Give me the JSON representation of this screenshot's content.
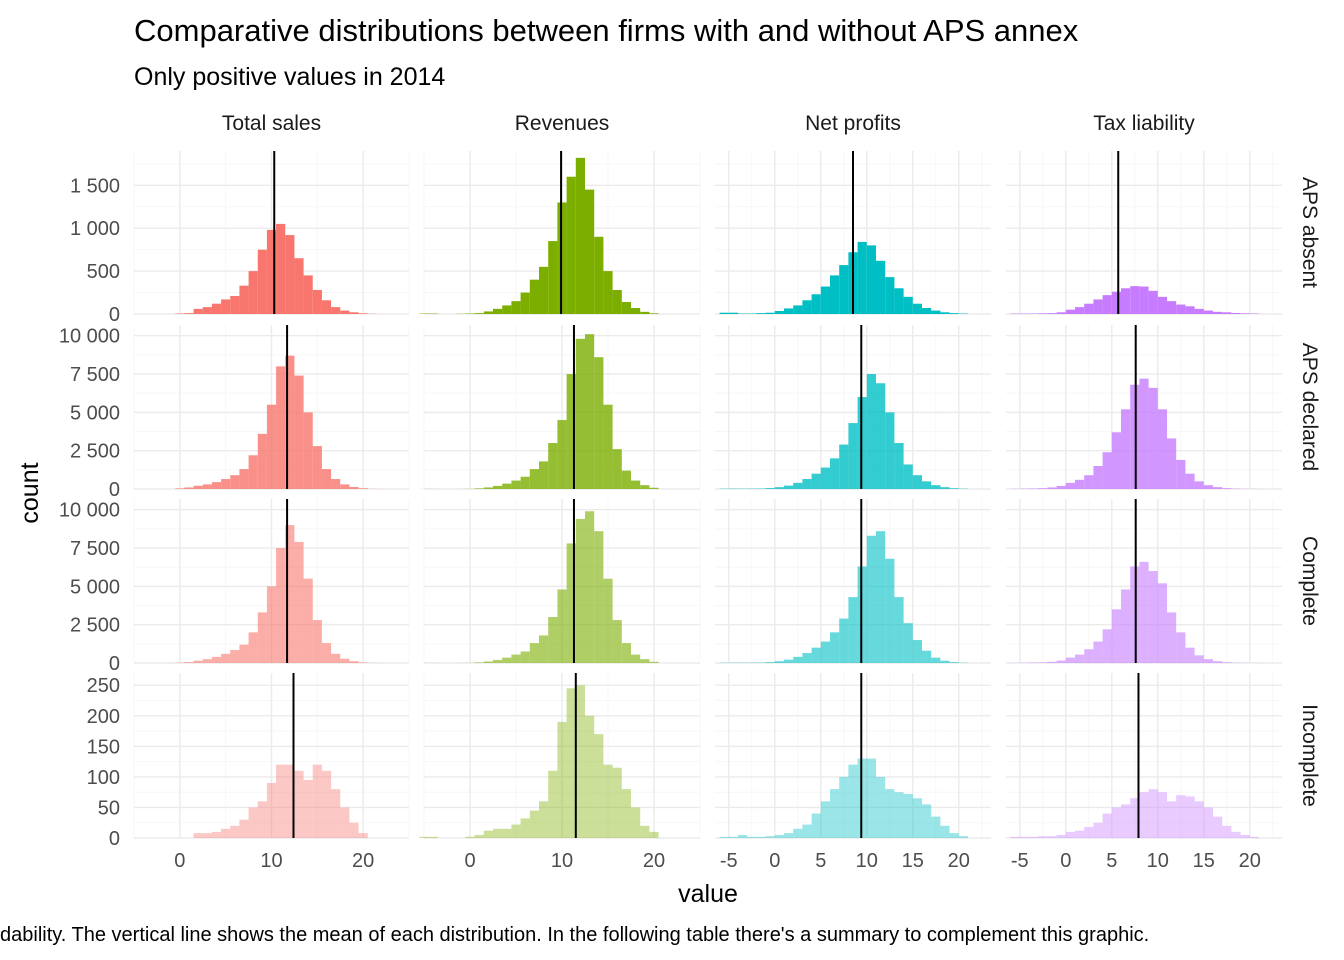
{
  "title": "Comparative distributions between firms with and without APS annex",
  "subtitle": "Only positive values in 2014",
  "caption": "dability. The vertical line shows the mean of each distribution. In the following table there's a summary to complement this graphic.",
  "xlabel": "value",
  "ylabel": "count",
  "colors": {
    "Total sales": "#F8766D",
    "Revenues": "#7CAE00",
    "Net profits": "#00BFC4",
    "Tax liability": "#C77CFF"
  },
  "chart_data": {
    "type": "bar",
    "facet_columns": [
      "Total sales",
      "Revenues",
      "Net profits",
      "Tax liability"
    ],
    "facet_rows": [
      "APS absent",
      "APS declared",
      "Complete",
      "Incomplete"
    ],
    "row_alpha": [
      1.0,
      0.8,
      0.6,
      0.4
    ],
    "x_ticks": [
      [
        "0",
        "10",
        "20"
      ],
      [
        "0",
        "10",
        "20"
      ],
      [
        "-5",
        "0",
        "5",
        "10",
        "15",
        "20"
      ],
      [
        "-5",
        "0",
        "5",
        "10",
        "15",
        "20"
      ]
    ],
    "x_tick_values": [
      [
        0,
        10,
        20
      ],
      [
        0,
        10,
        20
      ],
      [
        -5,
        0,
        5,
        10,
        15,
        20
      ],
      [
        -5,
        0,
        5,
        10,
        15,
        20
      ]
    ],
    "xlim": [
      [
        -5,
        25
      ],
      [
        -5,
        25
      ],
      [
        -6.5,
        23.5
      ],
      [
        -6.5,
        23.5
      ]
    ],
    "y_ticks": [
      [
        "0",
        "500",
        "1 000",
        "1 500"
      ],
      [
        "0",
        "2 500",
        "5 000",
        "7 500",
        "10 000"
      ],
      [
        "0",
        "2 500",
        "5 000",
        "7 500",
        "10 000"
      ],
      [
        "0",
        "50",
        "100",
        "150",
        "200",
        "250"
      ]
    ],
    "y_tick_values": [
      [
        0,
        500,
        1000,
        1500
      ],
      [
        0,
        2500,
        5000,
        7500,
        10000
      ],
      [
        0,
        2500,
        5000,
        7500,
        10000
      ],
      [
        0,
        50,
        100,
        150,
        200,
        250
      ]
    ],
    "ylim": [
      [
        0,
        1900
      ],
      [
        0,
        10700
      ],
      [
        0,
        10700
      ],
      [
        0,
        270
      ]
    ],
    "bin_width": 1,
    "bins": [
      {
        "column": "Total sales",
        "centers": [
          0,
          1,
          2,
          3,
          4,
          5,
          6,
          7,
          8,
          9,
          10,
          11,
          12,
          13,
          14,
          15,
          16,
          17,
          18,
          19,
          20,
          21
        ],
        "counts": [
          [
            5,
            10,
            60,
            80,
            120,
            170,
            210,
            330,
            500,
            750,
            980,
            1050,
            920,
            650,
            450,
            280,
            160,
            80,
            40,
            20,
            8,
            2
          ],
          [
            40,
            100,
            210,
            300,
            450,
            650,
            900,
            1300,
            2200,
            3600,
            5500,
            8000,
            8700,
            7400,
            5000,
            2800,
            1300,
            650,
            300,
            130,
            50,
            10
          ],
          [
            20,
            60,
            150,
            250,
            400,
            600,
            850,
            1200,
            2000,
            3300,
            5000,
            7500,
            9000,
            7900,
            5500,
            2800,
            1300,
            600,
            280,
            120,
            40,
            10
          ],
          [
            0,
            0,
            8,
            8,
            10,
            15,
            20,
            30,
            50,
            60,
            90,
            120,
            120,
            110,
            95,
            120,
            110,
            80,
            50,
            25,
            8,
            0
          ]
        ]
      },
      {
        "column": "Revenues",
        "centers": [
          -5,
          -4,
          -3,
          -2,
          -1,
          0,
          1,
          2,
          3,
          4,
          5,
          6,
          7,
          8,
          9,
          10,
          11,
          12,
          13,
          14,
          15,
          16,
          17,
          18,
          19,
          20
        ],
        "counts": [
          [
            5,
            5,
            0,
            0,
            2,
            5,
            10,
            30,
            60,
            100,
            150,
            250,
            400,
            550,
            850,
            1300,
            1600,
            1820,
            1450,
            900,
            500,
            280,
            140,
            70,
            25,
            8
          ],
          [
            5,
            5,
            0,
            0,
            2,
            10,
            40,
            100,
            200,
            350,
            550,
            800,
            1300,
            1800,
            3000,
            4500,
            7500,
            9800,
            10100,
            8600,
            5500,
            2600,
            1200,
            550,
            250,
            80
          ],
          [
            5,
            5,
            0,
            0,
            2,
            10,
            40,
            100,
            200,
            350,
            550,
            750,
            1300,
            1800,
            3000,
            4800,
            7800,
            9400,
            9900,
            8600,
            5500,
            2800,
            1300,
            550,
            250,
            80
          ],
          [
            2,
            2,
            0,
            0,
            0,
            2,
            5,
            12,
            15,
            15,
            22,
            32,
            45,
            60,
            110,
            190,
            245,
            250,
            200,
            170,
            120,
            115,
            80,
            50,
            20,
            10
          ]
        ]
      },
      {
        "column": "Net profits",
        "centers": [
          -5.5,
          -4.5,
          -3.5,
          -2.5,
          -1.5,
          -0.5,
          0.5,
          1.5,
          2.5,
          3.5,
          4.5,
          5.5,
          6.5,
          7.5,
          8.5,
          9.5,
          10.5,
          11.5,
          12.5,
          13.5,
          14.5,
          15.5,
          16.5,
          17.5,
          18.5,
          19.5,
          20.5
        ],
        "counts": [
          [
            15,
            15,
            5,
            5,
            10,
            15,
            35,
            65,
            100,
            160,
            230,
            320,
            450,
            570,
            720,
            840,
            800,
            620,
            430,
            300,
            200,
            120,
            70,
            40,
            20,
            10,
            5
          ],
          [
            20,
            25,
            20,
            25,
            30,
            60,
            120,
            220,
            400,
            650,
            1000,
            1400,
            2000,
            2900,
            4300,
            6000,
            7500,
            6900,
            5000,
            3000,
            1600,
            900,
            500,
            250,
            120,
            50,
            20
          ],
          [
            20,
            25,
            20,
            25,
            30,
            60,
            120,
            220,
            400,
            650,
            1000,
            1400,
            2000,
            2900,
            4300,
            6300,
            8300,
            8600,
            6800,
            4300,
            2600,
            1500,
            800,
            350,
            150,
            60,
            20
          ],
          [
            2,
            2,
            5,
            2,
            2,
            3,
            5,
            8,
            15,
            22,
            40,
            60,
            80,
            100,
            120,
            130,
            130,
            100,
            80,
            75,
            72,
            65,
            55,
            35,
            20,
            8,
            3
          ]
        ]
      },
      {
        "column": "Tax liability",
        "centers": [
          -5.5,
          -4.5,
          -3.5,
          -2.5,
          -1.5,
          -0.5,
          0.5,
          1.5,
          2.5,
          3.5,
          4.5,
          5.5,
          6.5,
          7.5,
          8.5,
          9.5,
          10.5,
          11.5,
          12.5,
          13.5,
          14.5,
          15.5,
          16.5,
          17.5,
          18.5,
          19.5,
          20.5
        ],
        "counts": [
          [
            5,
            5,
            5,
            8,
            10,
            20,
            50,
            80,
            120,
            170,
            220,
            260,
            300,
            325,
            320,
            270,
            200,
            150,
            110,
            90,
            60,
            40,
            25,
            20,
            12,
            8,
            5
          ],
          [
            10,
            20,
            30,
            50,
            100,
            200,
            400,
            600,
            900,
            1500,
            2400,
            3700,
            5200,
            6800,
            7200,
            6600,
            5200,
            3300,
            1900,
            1000,
            500,
            250,
            120,
            50,
            20,
            10,
            5
          ],
          [
            10,
            20,
            30,
            40,
            80,
            160,
            350,
            550,
            900,
            1400,
            2200,
            3500,
            4800,
            6300,
            6600,
            6000,
            5200,
            3300,
            2000,
            1000,
            500,
            250,
            120,
            50,
            20,
            10,
            5
          ],
          [
            2,
            2,
            2,
            3,
            3,
            5,
            10,
            12,
            18,
            25,
            40,
            50,
            55,
            65,
            75,
            80,
            75,
            60,
            70,
            68,
            60,
            50,
            35,
            20,
            10,
            5,
            2
          ]
        ]
      }
    ],
    "means": [
      [
        10.3,
        9.9,
        8.5,
        5.7
      ],
      [
        11.7,
        11.3,
        9.4,
        7.6
      ],
      [
        11.7,
        11.3,
        9.4,
        7.6
      ],
      [
        12.4,
        11.5,
        9.4,
        7.9
      ]
    ]
  }
}
